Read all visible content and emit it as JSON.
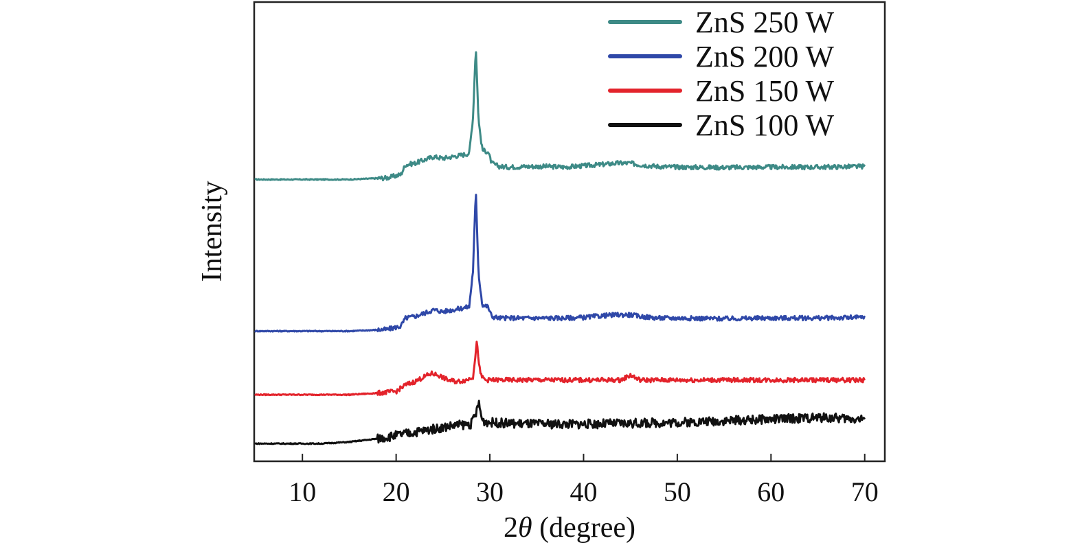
{
  "chart_data": {
    "type": "line",
    "title": "",
    "xlabel_prefix": "2",
    "xlabel_symbol": "θ",
    "xlabel_suffix": " (degree)",
    "ylabel": "Intensity",
    "xlim": [
      5,
      72
    ],
    "ylim": [
      0,
      14
    ],
    "xticks": [
      "10",
      "20",
      "30",
      "40",
      "50",
      "60",
      "70"
    ],
    "grid": false,
    "legend_position": "top-right",
    "series": [
      {
        "name": "ZnS 250 W",
        "color": "#3d8a86",
        "x": [
          5,
          15,
          19,
          20.5,
          21,
          22,
          23,
          24,
          25,
          26,
          27,
          27.8,
          28.2,
          28.5,
          28.8,
          29.2,
          29.8,
          30.2,
          31,
          32,
          34,
          36,
          38,
          40,
          42,
          43.5,
          45,
          46,
          48,
          50,
          55,
          60,
          65,
          70
        ],
        "y": [
          8.6,
          8.6,
          8.65,
          8.75,
          9.05,
          9.1,
          9.2,
          9.3,
          9.25,
          9.3,
          9.35,
          9.4,
          10.5,
          12.7,
          10.4,
          9.5,
          9.45,
          9.1,
          9.0,
          8.98,
          9.0,
          9.0,
          8.98,
          9.02,
          9.06,
          9.1,
          9.1,
          9.05,
          9.0,
          8.98,
          8.97,
          8.98,
          8.98,
          9.0
        ]
      },
      {
        "name": "ZnS 200 W",
        "color": "#2f48a8",
        "x": [
          5,
          15,
          19,
          20.5,
          21,
          22,
          23,
          24,
          25,
          26,
          27,
          27.8,
          28.2,
          28.5,
          28.8,
          29.2,
          29.8,
          30.2,
          31,
          32,
          34,
          36,
          38,
          40,
          42,
          43.5,
          45,
          46,
          48,
          50,
          55,
          60,
          65,
          70
        ],
        "y": [
          3.95,
          3.95,
          4.0,
          4.1,
          4.35,
          4.4,
          4.5,
          4.6,
          4.55,
          4.6,
          4.65,
          4.7,
          5.8,
          8.25,
          5.7,
          4.75,
          4.7,
          4.4,
          4.35,
          4.35,
          4.35,
          4.35,
          4.35,
          4.37,
          4.42,
          4.45,
          4.45,
          4.4,
          4.35,
          4.35,
          4.33,
          4.35,
          4.35,
          4.37
        ]
      },
      {
        "name": "ZnS 150 W",
        "color": "#e3232b",
        "x": [
          5,
          15,
          18,
          20,
          21,
          22,
          23,
          23.8,
          24.5,
          25.5,
          26.5,
          27.5,
          28.2,
          28.6,
          29,
          29.5,
          30.5,
          32,
          35,
          40,
          44,
          45,
          46,
          48,
          50,
          55,
          60,
          65,
          70
        ],
        "y": [
          2.0,
          2.0,
          2.05,
          2.1,
          2.3,
          2.4,
          2.55,
          2.65,
          2.6,
          2.45,
          2.4,
          2.45,
          2.55,
          3.6,
          2.6,
          2.45,
          2.45,
          2.45,
          2.45,
          2.45,
          2.45,
          2.6,
          2.45,
          2.45,
          2.45,
          2.45,
          2.45,
          2.45,
          2.45
        ]
      },
      {
        "name": "ZnS 100 W",
        "color": "#111111",
        "x": [
          5,
          12,
          15,
          18,
          20,
          22,
          24,
          26,
          28,
          28.5,
          28.8,
          29.2,
          30,
          32,
          35,
          40,
          45,
          50,
          55,
          60,
          65,
          70
        ],
        "y": [
          0.5,
          0.5,
          0.55,
          0.65,
          0.75,
          0.85,
          0.95,
          1.05,
          1.1,
          1.4,
          1.75,
          1.2,
          1.15,
          1.12,
          1.1,
          1.1,
          1.12,
          1.15,
          1.2,
          1.25,
          1.3,
          1.25
        ]
      }
    ]
  }
}
